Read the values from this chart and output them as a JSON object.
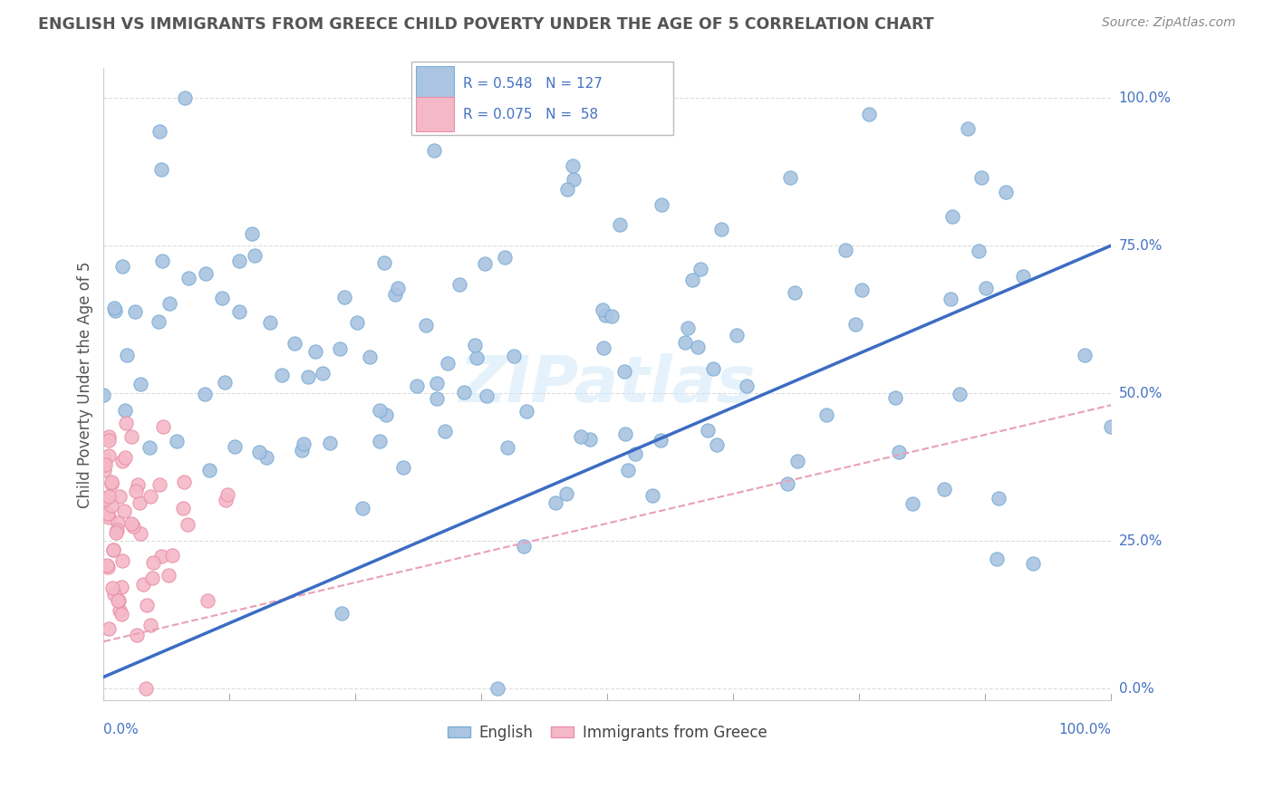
{
  "title": "ENGLISH VS IMMIGRANTS FROM GREECE CHILD POVERTY UNDER THE AGE OF 5 CORRELATION CHART",
  "source": "Source: ZipAtlas.com",
  "ylabel": "Child Poverty Under the Age of 5",
  "ylabel_right_ticks": [
    "100.0%",
    "75.0%",
    "50.0%",
    "25.0%",
    "0.0%"
  ],
  "ylabel_right_values": [
    1.0,
    0.75,
    0.5,
    0.25,
    0.0
  ],
  "english_R": 0.548,
  "english_N": 127,
  "greece_R": 0.075,
  "greece_N": 58,
  "english_color": "#aac4e2",
  "english_edge_color": "#7aadd4",
  "greece_color": "#f5b8c8",
  "greece_edge_color": "#e890a8",
  "english_line_color": "#3b6cc4",
  "greece_line_color": "#e8a0b8",
  "watermark_color": "#d0e8f8",
  "grid_color": "#dddddd",
  "axis_label_color": "#4472c4",
  "title_color": "#555555",
  "source_color": "#888888"
}
